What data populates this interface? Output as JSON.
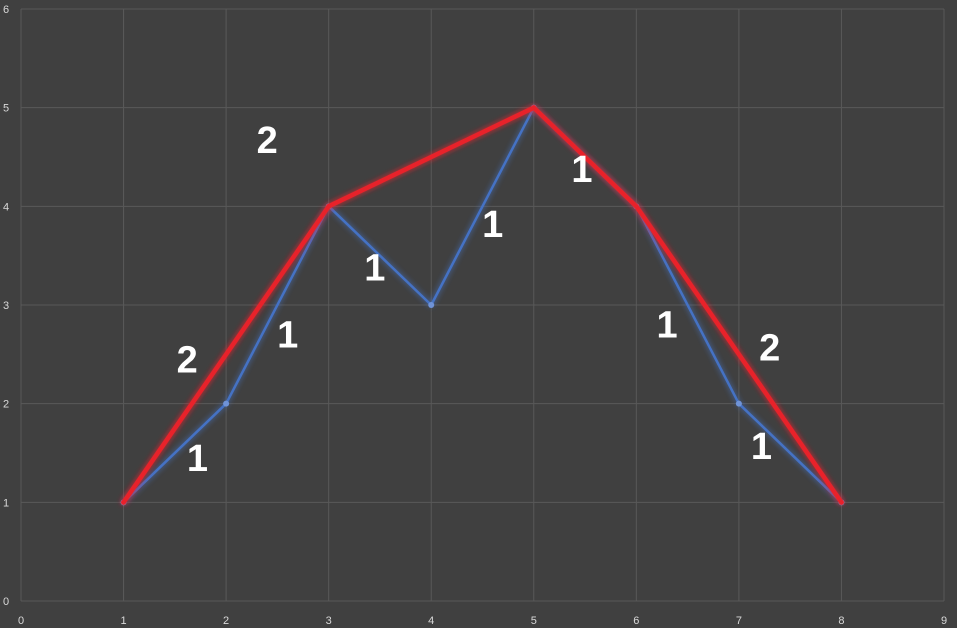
{
  "chart_data": {
    "type": "scatter",
    "xlim": [
      0,
      9
    ],
    "ylim": [
      0,
      6
    ],
    "x_ticks": [
      "0",
      "1",
      "2",
      "3",
      "4",
      "5",
      "6",
      "7",
      "8",
      "9"
    ],
    "y_ticks": [
      "0",
      "1",
      "2",
      "3",
      "4",
      "5",
      "6"
    ],
    "grid": true,
    "series": [
      {
        "color": "#4472c4",
        "x": [
          1,
          2,
          3,
          4,
          5,
          6,
          7,
          8
        ],
        "y": [
          1,
          2,
          4,
          3,
          5,
          4,
          2,
          1
        ]
      },
      {
        "color": "#e8212b",
        "x": [
          1,
          3,
          5,
          6,
          8
        ],
        "y": [
          1,
          4,
          5,
          4,
          1
        ]
      }
    ],
    "annotations": [
      {
        "text": "1",
        "x": 1.72,
        "y": 1.45
      },
      {
        "text": "2",
        "x": 1.62,
        "y": 2.45
      },
      {
        "text": "1",
        "x": 2.6,
        "y": 2.7
      },
      {
        "text": "2",
        "x": 2.4,
        "y": 4.67
      },
      {
        "text": "1",
        "x": 3.45,
        "y": 3.38
      },
      {
        "text": "1",
        "x": 4.6,
        "y": 3.82
      },
      {
        "text": "1",
        "x": 5.47,
        "y": 4.38
      },
      {
        "text": "1",
        "x": 6.3,
        "y": 2.8
      },
      {
        "text": "2",
        "x": 7.3,
        "y": 2.57
      },
      {
        "text": "1",
        "x": 7.22,
        "y": 1.57
      }
    ]
  }
}
